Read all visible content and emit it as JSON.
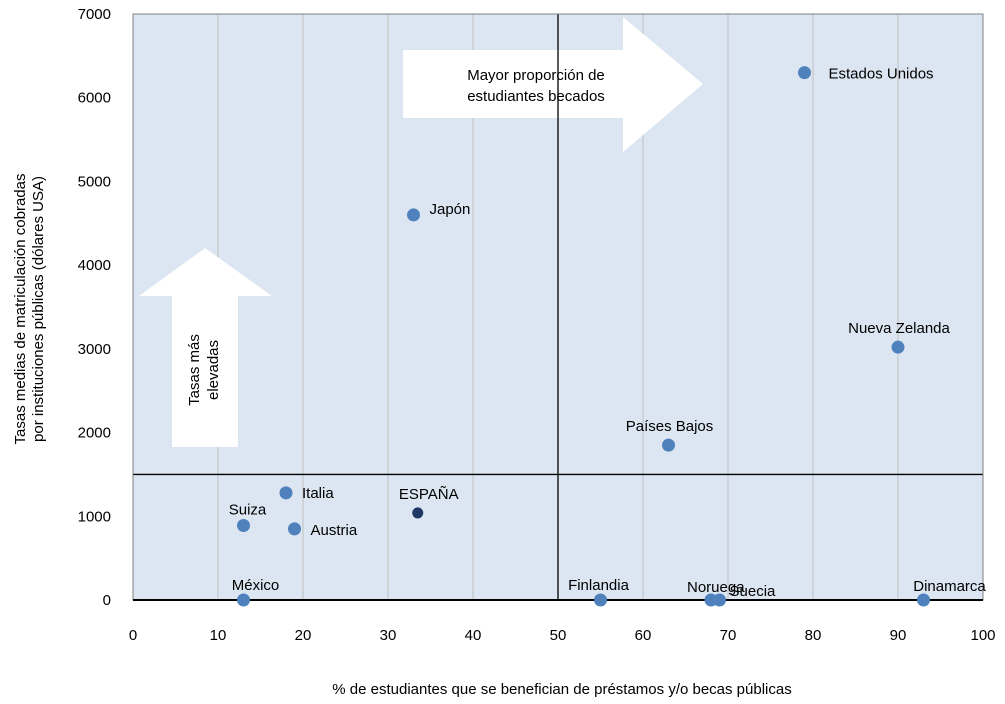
{
  "chart_data": {
    "type": "scatter",
    "xlabel": "% de estudiantes que se benefician de préstamos y/o becas públicas",
    "ylabel_lines": [
      "Tasas medias de matriculación cobradas",
      "por instituciones públicas (dólares USA)"
    ],
    "xlim": [
      0,
      100
    ],
    "ylim": [
      0,
      7000
    ],
    "x_ticks": [
      0,
      10,
      20,
      30,
      40,
      50,
      60,
      70,
      80,
      90,
      100
    ],
    "y_ticks": [
      0,
      1000,
      2000,
      3000,
      4000,
      5000,
      6000,
      7000
    ],
    "grid": "vertical",
    "reference_lines": {
      "x": 50,
      "y": 1500
    },
    "points": [
      {
        "label": "Estados Unidos",
        "x": 79,
        "y": 6300,
        "highlight": false
      },
      {
        "label": "Japón",
        "x": 33,
        "y": 4600,
        "highlight": false
      },
      {
        "label": "Nueva Zelanda",
        "x": 90,
        "y": 3020,
        "highlight": false
      },
      {
        "label": "Países Bajos",
        "x": 63,
        "y": 1850,
        "highlight": false
      },
      {
        "label": "Italia",
        "x": 18,
        "y": 1280,
        "highlight": false
      },
      {
        "label": "ESPAÑA",
        "x": 33.5,
        "y": 1040,
        "highlight": true
      },
      {
        "label": "Suiza",
        "x": 13,
        "y": 890,
        "highlight": false
      },
      {
        "label": "Austria",
        "x": 19,
        "y": 850,
        "highlight": false
      },
      {
        "label": "México",
        "x": 13,
        "y": 0,
        "highlight": false
      },
      {
        "label": "Finlandia",
        "x": 55,
        "y": 0,
        "highlight": false
      },
      {
        "label": "Noruega",
        "x": 68,
        "y": 0,
        "highlight": false
      },
      {
        "label": "Suecia",
        "x": 69,
        "y": 0,
        "highlight": false
      },
      {
        "label": "Dinamarca",
        "x": 93,
        "y": 0,
        "highlight": false
      }
    ],
    "annotations": {
      "right_arrow_lines": [
        "Mayor proporción de",
        "estudiantes becados"
      ],
      "up_arrow_lines": [
        "Tasas más",
        "elevadas"
      ]
    },
    "colors": {
      "plot_background": "#dce6f2",
      "point": "#4f81bd",
      "point_highlight": "#1f3864",
      "gridline": "#c0c0c0",
      "reference_line": "#000000",
      "arrow_fill": "#ffffff"
    }
  }
}
